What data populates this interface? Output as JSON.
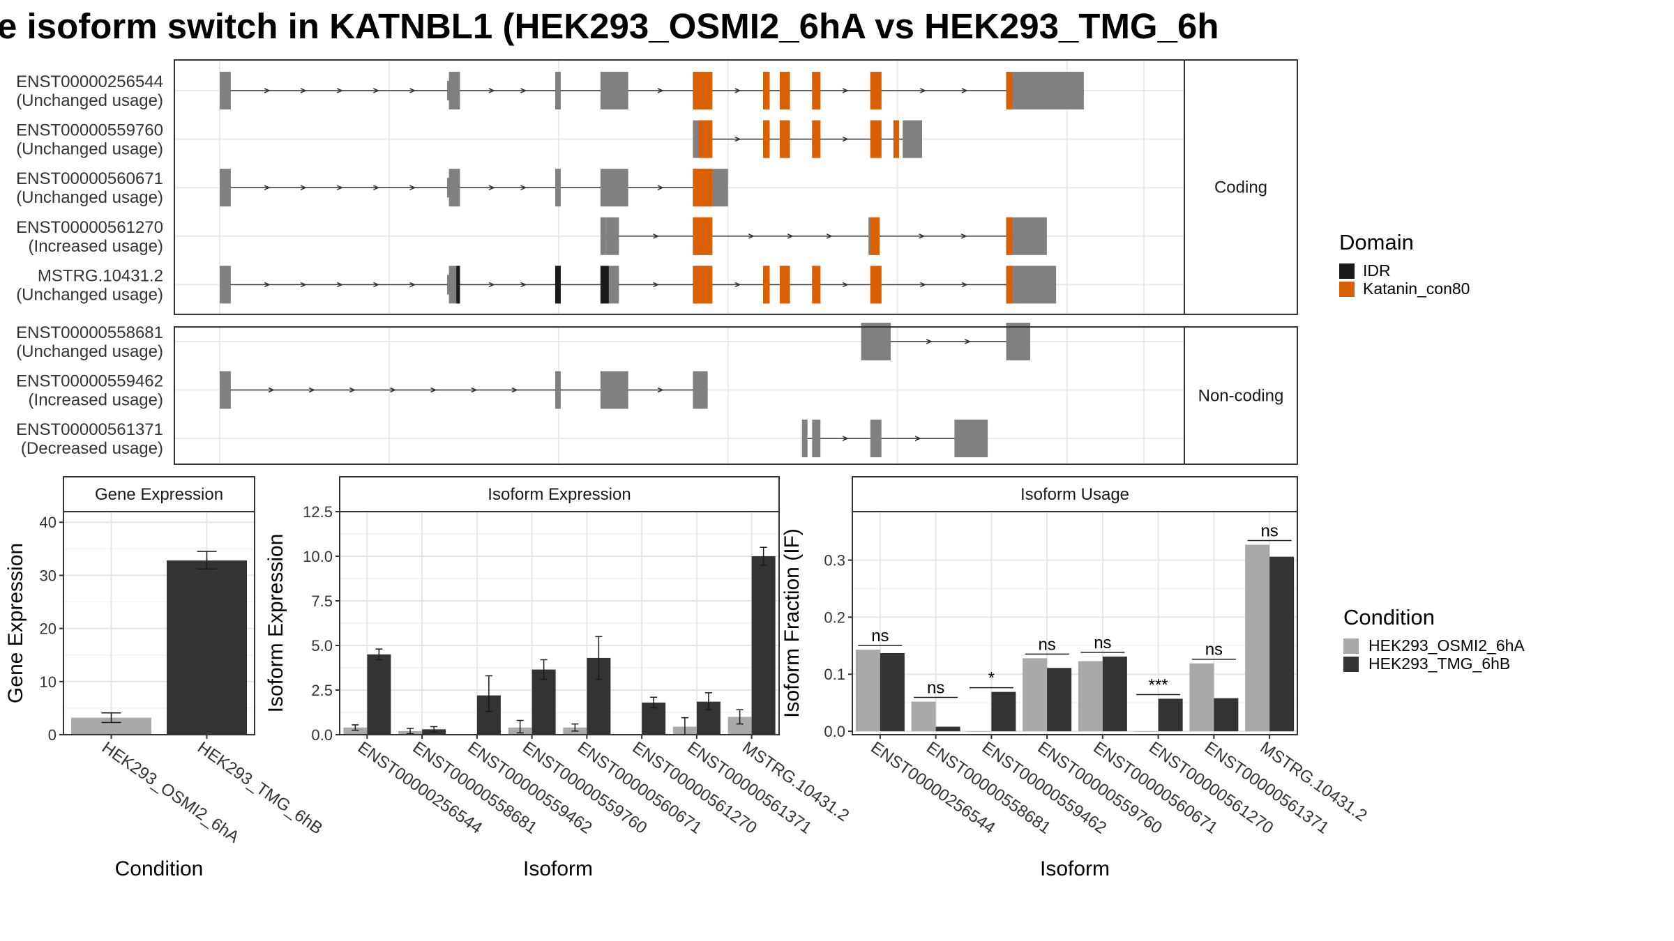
{
  "title": "e isoform switch in KATNBL1 (HEK293_OSMI2_6hA vs HEK293_TMG_6h",
  "colors": {
    "exon": "#808080",
    "idr": "#1a1a1a",
    "katanin": "#d95f02",
    "cond_a": "#a9a9a9",
    "cond_b": "#333333",
    "panel_border": "#333333",
    "strip_fill": "#ffffff"
  },
  "chart_data": [
    {
      "type": "gene-structure",
      "facets": [
        "Coding",
        "Non-coding"
      ],
      "genome_range": [
        0,
        1000
      ],
      "isoforms": [
        {
          "id": "ENST00000256544",
          "usage": "(Unchanged usage)",
          "facet": "Coding",
          "exons": [
            [
              0,
              12
            ],
            [
              248,
              260
            ],
            [
              363,
              369
            ],
            [
              412,
              442
            ],
            [
              512,
              533
            ],
            [
              588,
              595
            ],
            [
              606,
              617
            ],
            [
              641,
              650
            ],
            [
              704,
              716
            ],
            [
              851,
              858
            ],
            [
              858,
              935
            ]
          ],
          "domains": [
            {
              "name": "Katanin_con80",
              "segments": [
                [
                  512,
                  533
                ],
                [
                  588,
                  595
                ],
                [
                  606,
                  617
                ],
                [
                  641,
                  650
                ],
                [
                  704,
                  716
                ],
                [
                  851,
                  858
                ]
              ]
            }
          ],
          "thin": [
            [
              246,
              248
            ],
            [
              855,
              858
            ]
          ]
        },
        {
          "id": "ENST00000559760",
          "usage": "(Unchanged usage)",
          "facet": "Coding",
          "exons": [
            [
              512,
              533
            ],
            [
              588,
              595
            ],
            [
              606,
              617
            ],
            [
              641,
              650
            ],
            [
              704,
              716
            ],
            [
              729,
              735
            ],
            [
              739,
              760
            ]
          ],
          "domains": [
            {
              "name": "Katanin_con80",
              "segments": [
                [
                  518,
                  533
                ],
                [
                  588,
                  595
                ],
                [
                  606,
                  617
                ],
                [
                  641,
                  650
                ],
                [
                  704,
                  716
                ],
                [
                  729,
                  735
                ]
              ]
            }
          ],
          "thin": []
        },
        {
          "id": "ENST00000560671",
          "usage": "(Unchanged usage)",
          "facet": "Coding",
          "exons": [
            [
              0,
              12
            ],
            [
              248,
              260
            ],
            [
              363,
              369
            ],
            [
              412,
              442
            ],
            [
              512,
              533
            ],
            [
              533,
              550
            ]
          ],
          "domains": [
            {
              "name": "Katanin_con80",
              "segments": [
                [
                  512,
                  533
                ]
              ]
            }
          ],
          "thin": [
            [
              246,
              248
            ]
          ]
        },
        {
          "id": "ENST00000561270",
          "usage": "(Increased usage)",
          "facet": "Coding",
          "exons": [
            [
              412,
              418
            ],
            [
              418,
              432
            ],
            [
              512,
              533
            ],
            [
              702,
              714
            ],
            [
              851,
              858
            ],
            [
              858,
              895
            ]
          ],
          "domains": [
            {
              "name": "Katanin_con80",
              "segments": [
                [
                  512,
                  533
                ],
                [
                  704,
                  714
                ],
                [
                  851,
                  858
                ]
              ]
            }
          ],
          "thin": []
        },
        {
          "id": "MSTRG.10431.2",
          "usage": "(Unchanged usage)",
          "facet": "Coding",
          "exons": [
            [
              0,
              12
            ],
            [
              248,
              260
            ],
            [
              363,
              369
            ],
            [
              412,
              432
            ],
            [
              512,
              533
            ],
            [
              588,
              595
            ],
            [
              606,
              617
            ],
            [
              641,
              650
            ],
            [
              704,
              716
            ],
            [
              851,
              858
            ],
            [
              858,
              905
            ]
          ],
          "domains": [
            {
              "name": "IDR",
              "segments": [
                [
                  256,
                  260
                ],
                [
                  363,
                  369
                ],
                [
                  412,
                  421
                ]
              ]
            },
            {
              "name": "Katanin_con80",
              "segments": [
                [
                  512,
                  533
                ],
                [
                  588,
                  595
                ],
                [
                  606,
                  617
                ],
                [
                  641,
                  650
                ],
                [
                  704,
                  716
                ],
                [
                  851,
                  858
                ]
              ]
            }
          ],
          "thin": [
            [
              246,
              248
            ]
          ]
        },
        {
          "id": "ENST00000558681",
          "usage": "(Unchanged usage)",
          "facet": "Non-coding",
          "exons": [
            [
              694,
              726
            ],
            [
              851,
              877
            ]
          ],
          "domains": [],
          "thin": []
        },
        {
          "id": "ENST00000559462",
          "usage": "(Increased usage)",
          "facet": "Non-coding",
          "exons": [
            [
              0,
              12
            ],
            [
              363,
              369
            ],
            [
              412,
              442
            ],
            [
              512,
              528
            ]
          ],
          "domains": [],
          "thin": []
        },
        {
          "id": "ENST00000561371",
          "usage": "(Decreased usage)",
          "facet": "Non-coding",
          "exons": [
            [
              630,
              636
            ],
            [
              641,
              650
            ],
            [
              704,
              716
            ],
            [
              795,
              831
            ]
          ],
          "domains": [],
          "thin": []
        }
      ],
      "legend": {
        "title": "Domain",
        "items": [
          {
            "name": "IDR",
            "color": "#1a1a1a"
          },
          {
            "name": "Katanin_con80",
            "color": "#d95f02"
          }
        ]
      }
    },
    {
      "type": "bar",
      "strip": "Gene Expression",
      "xlabel": "Condition",
      "ylabel": "Gene Expression",
      "ylim": [
        0,
        42
      ],
      "yticks": [
        0,
        10,
        20,
        30,
        40
      ],
      "categories": [
        "HEK293_OSMI2_6hA",
        "HEK293_TMG_6hB"
      ],
      "values": [
        3.2,
        32.8
      ],
      "errors": [
        [
          2.3,
          4.1
        ],
        [
          31.2,
          34.5
        ]
      ],
      "grid": true
    },
    {
      "type": "bar",
      "strip": "Isoform Expression",
      "xlabel": "Isoform",
      "ylabel": "Isoform Expression",
      "ylim": [
        0,
        12.5
      ],
      "yticks": [
        0.0,
        2.5,
        5.0,
        7.5,
        10.0,
        12.5
      ],
      "ytick_labels": [
        "0.0",
        "2.5",
        "5.0",
        "7.5",
        "10.0",
        "12.5"
      ],
      "categories": [
        "ENST00000256544",
        "ENST00000558681",
        "ENST00000559462",
        "ENST00000559760",
        "ENST00000560671",
        "ENST00000561270",
        "ENST00000561371",
        "MSTRG.10431.2"
      ],
      "series": [
        {
          "name": "HEK293_OSMI2_6hA",
          "values": [
            0.4,
            0.2,
            0.0,
            0.4,
            0.4,
            0.0,
            0.45,
            1.0
          ],
          "errors": [
            [
              0.25,
              0.55
            ],
            [
              0.05,
              0.35
            ],
            [
              0,
              0
            ],
            [
              0.1,
              0.8
            ],
            [
              0.2,
              0.6
            ],
            [
              0,
              0
            ],
            [
              0.0,
              0.95
            ],
            [
              0.6,
              1.4
            ]
          ]
        },
        {
          "name": "HEK293_TMG_6hB",
          "values": [
            4.5,
            0.3,
            2.2,
            3.65,
            4.3,
            1.8,
            1.85,
            10.0
          ],
          "errors": [
            [
              4.2,
              4.8
            ],
            [
              0.15,
              0.45
            ],
            [
              1.3,
              3.3
            ],
            [
              3.1,
              4.2
            ],
            [
              3.1,
              5.5
            ],
            [
              1.5,
              2.1
            ],
            [
              1.4,
              2.35
            ],
            [
              9.5,
              10.5
            ]
          ]
        }
      ],
      "grid": true
    },
    {
      "type": "bar",
      "strip": "Isoform Usage",
      "xlabel": "Isoform",
      "ylabel": "Isoform Fraction (IF)",
      "ylim": [
        -0.006,
        0.385
      ],
      "yticks": [
        0.0,
        0.1,
        0.2,
        0.3
      ],
      "ytick_labels": [
        "0.0",
        "0.1",
        "0.2",
        "0.3"
      ],
      "categories": [
        "ENST00000256544",
        "ENST00000558681",
        "ENST00000559462",
        "ENST00000559760",
        "ENST00000560671",
        "ENST00000561270",
        "ENST00000561371",
        "MSTRG.10431.2"
      ],
      "series": [
        {
          "name": "HEK293_OSMI2_6hA",
          "values": [
            0.143,
            0.052,
            0.0,
            0.128,
            0.123,
            0.0,
            0.119,
            0.327
          ]
        },
        {
          "name": "HEK293_TMG_6hB",
          "values": [
            0.137,
            0.008,
            0.069,
            0.111,
            0.131,
            0.057,
            0.058,
            0.306
          ]
        }
      ],
      "significance": [
        "ns",
        "ns",
        "*",
        "ns",
        "ns",
        "***",
        "ns",
        "ns"
      ],
      "grid": true
    }
  ],
  "condition_legend": {
    "title": "Condition",
    "items": [
      {
        "name": "HEK293_OSMI2_6hA",
        "color": "#a9a9a9"
      },
      {
        "name": "HEK293_TMG_6hB",
        "color": "#333333"
      }
    ]
  }
}
